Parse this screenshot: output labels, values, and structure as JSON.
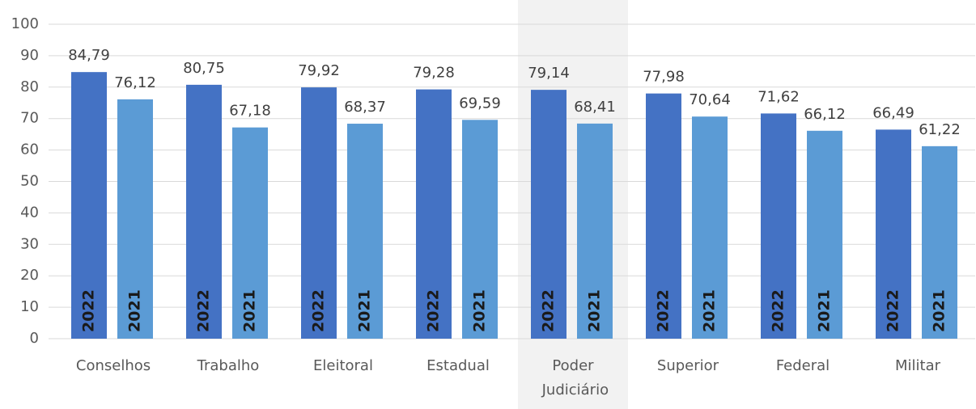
{
  "chart_data": {
    "type": "bar",
    "categories": [
      "Conselhos",
      "Trabalho",
      "Eleitoral",
      "Estadual",
      "Poder Judiciário",
      "Superior",
      "Federal",
      "Militar"
    ],
    "series": [
      {
        "name": "2022",
        "color": "#4472c4",
        "values": [
          84.79,
          80.75,
          79.92,
          79.28,
          79.14,
          77.98,
          71.62,
          66.49
        ],
        "value_labels": [
          "84,79",
          "80,75",
          "79,92",
          "79,28",
          "79,14",
          "77,98",
          "71,62",
          "66,49"
        ]
      },
      {
        "name": "2021",
        "color": "#5b9bd5",
        "values": [
          76.12,
          67.18,
          68.37,
          69.59,
          68.41,
          70.64,
          66.12,
          61.22
        ],
        "value_labels": [
          "76,12",
          "67,18",
          "68,37",
          "69,59",
          "68,41",
          "70,64",
          "66,12",
          "61,22"
        ]
      }
    ],
    "ylim": [
      0,
      100
    ],
    "yticks": [
      0,
      10,
      20,
      30,
      40,
      50,
      60,
      70,
      80,
      90,
      100
    ],
    "grid": true,
    "highlight": "Poder Judiciário"
  }
}
